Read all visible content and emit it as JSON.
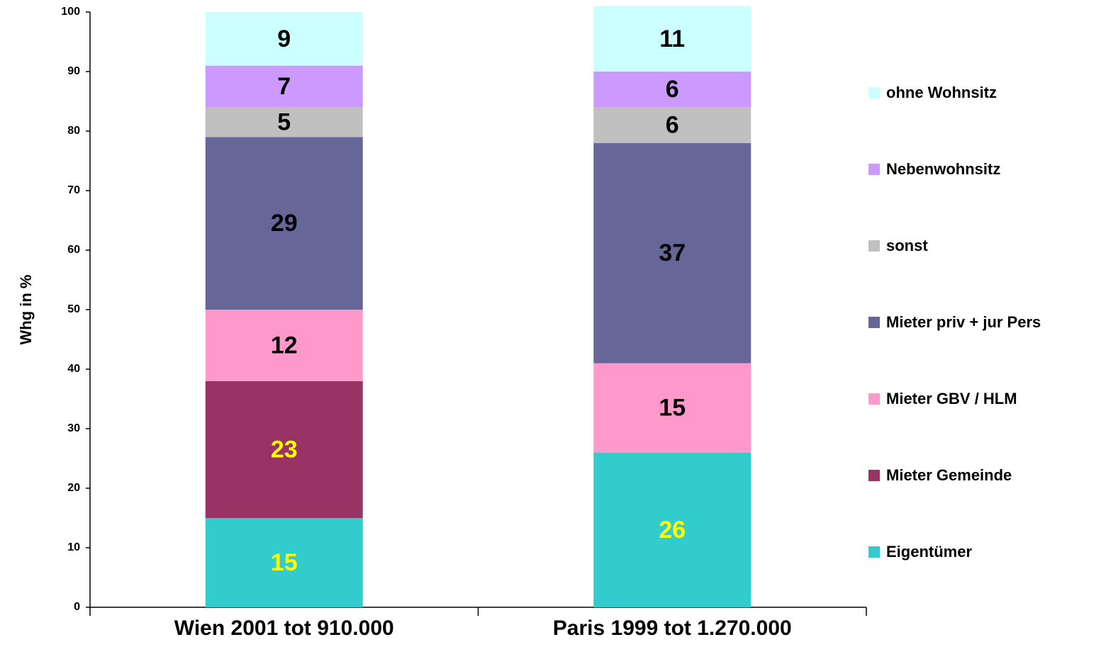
{
  "chart_data": {
    "type": "stacked_bar",
    "y_label": "Whg in %",
    "categories": [
      "Wien 2001 tot 910.000",
      "Paris 1999 tot 1.270.000"
    ],
    "series": [
      {
        "name": "Eigentümer",
        "color": "#33CCCC",
        "label_color": "#FFFF00",
        "values": [
          15,
          26
        ]
      },
      {
        "name": "Mieter Gemeinde",
        "color": "#993366",
        "label_color": "#FFFF00",
        "values": [
          23,
          null
        ]
      },
      {
        "name": "Mieter GBV / HLM",
        "color": "#FF99CC",
        "label_color": "#000000",
        "values": [
          12,
          15
        ]
      },
      {
        "name": "Mieter priv + jur Pers",
        "color": "#666699",
        "label_color": "#000000",
        "values": [
          29,
          37
        ]
      },
      {
        "name": "sonst",
        "color": "#C0C0C0",
        "label_color": "#000000",
        "values": [
          5,
          6
        ]
      },
      {
        "name": "Nebenwohnsitz",
        "color": "#CC99FF",
        "label_color": "#000000",
        "values": [
          7,
          6
        ]
      },
      {
        "name": "ohne Wohnsitz",
        "color": "#CCFFFF",
        "label_color": "#000000",
        "values": [
          9,
          11
        ]
      }
    ],
    "ylim": [
      0,
      100
    ],
    "yticks": [
      0,
      10,
      20,
      30,
      40,
      50,
      60,
      70,
      80,
      90,
      100
    ],
    "legend": "right"
  }
}
